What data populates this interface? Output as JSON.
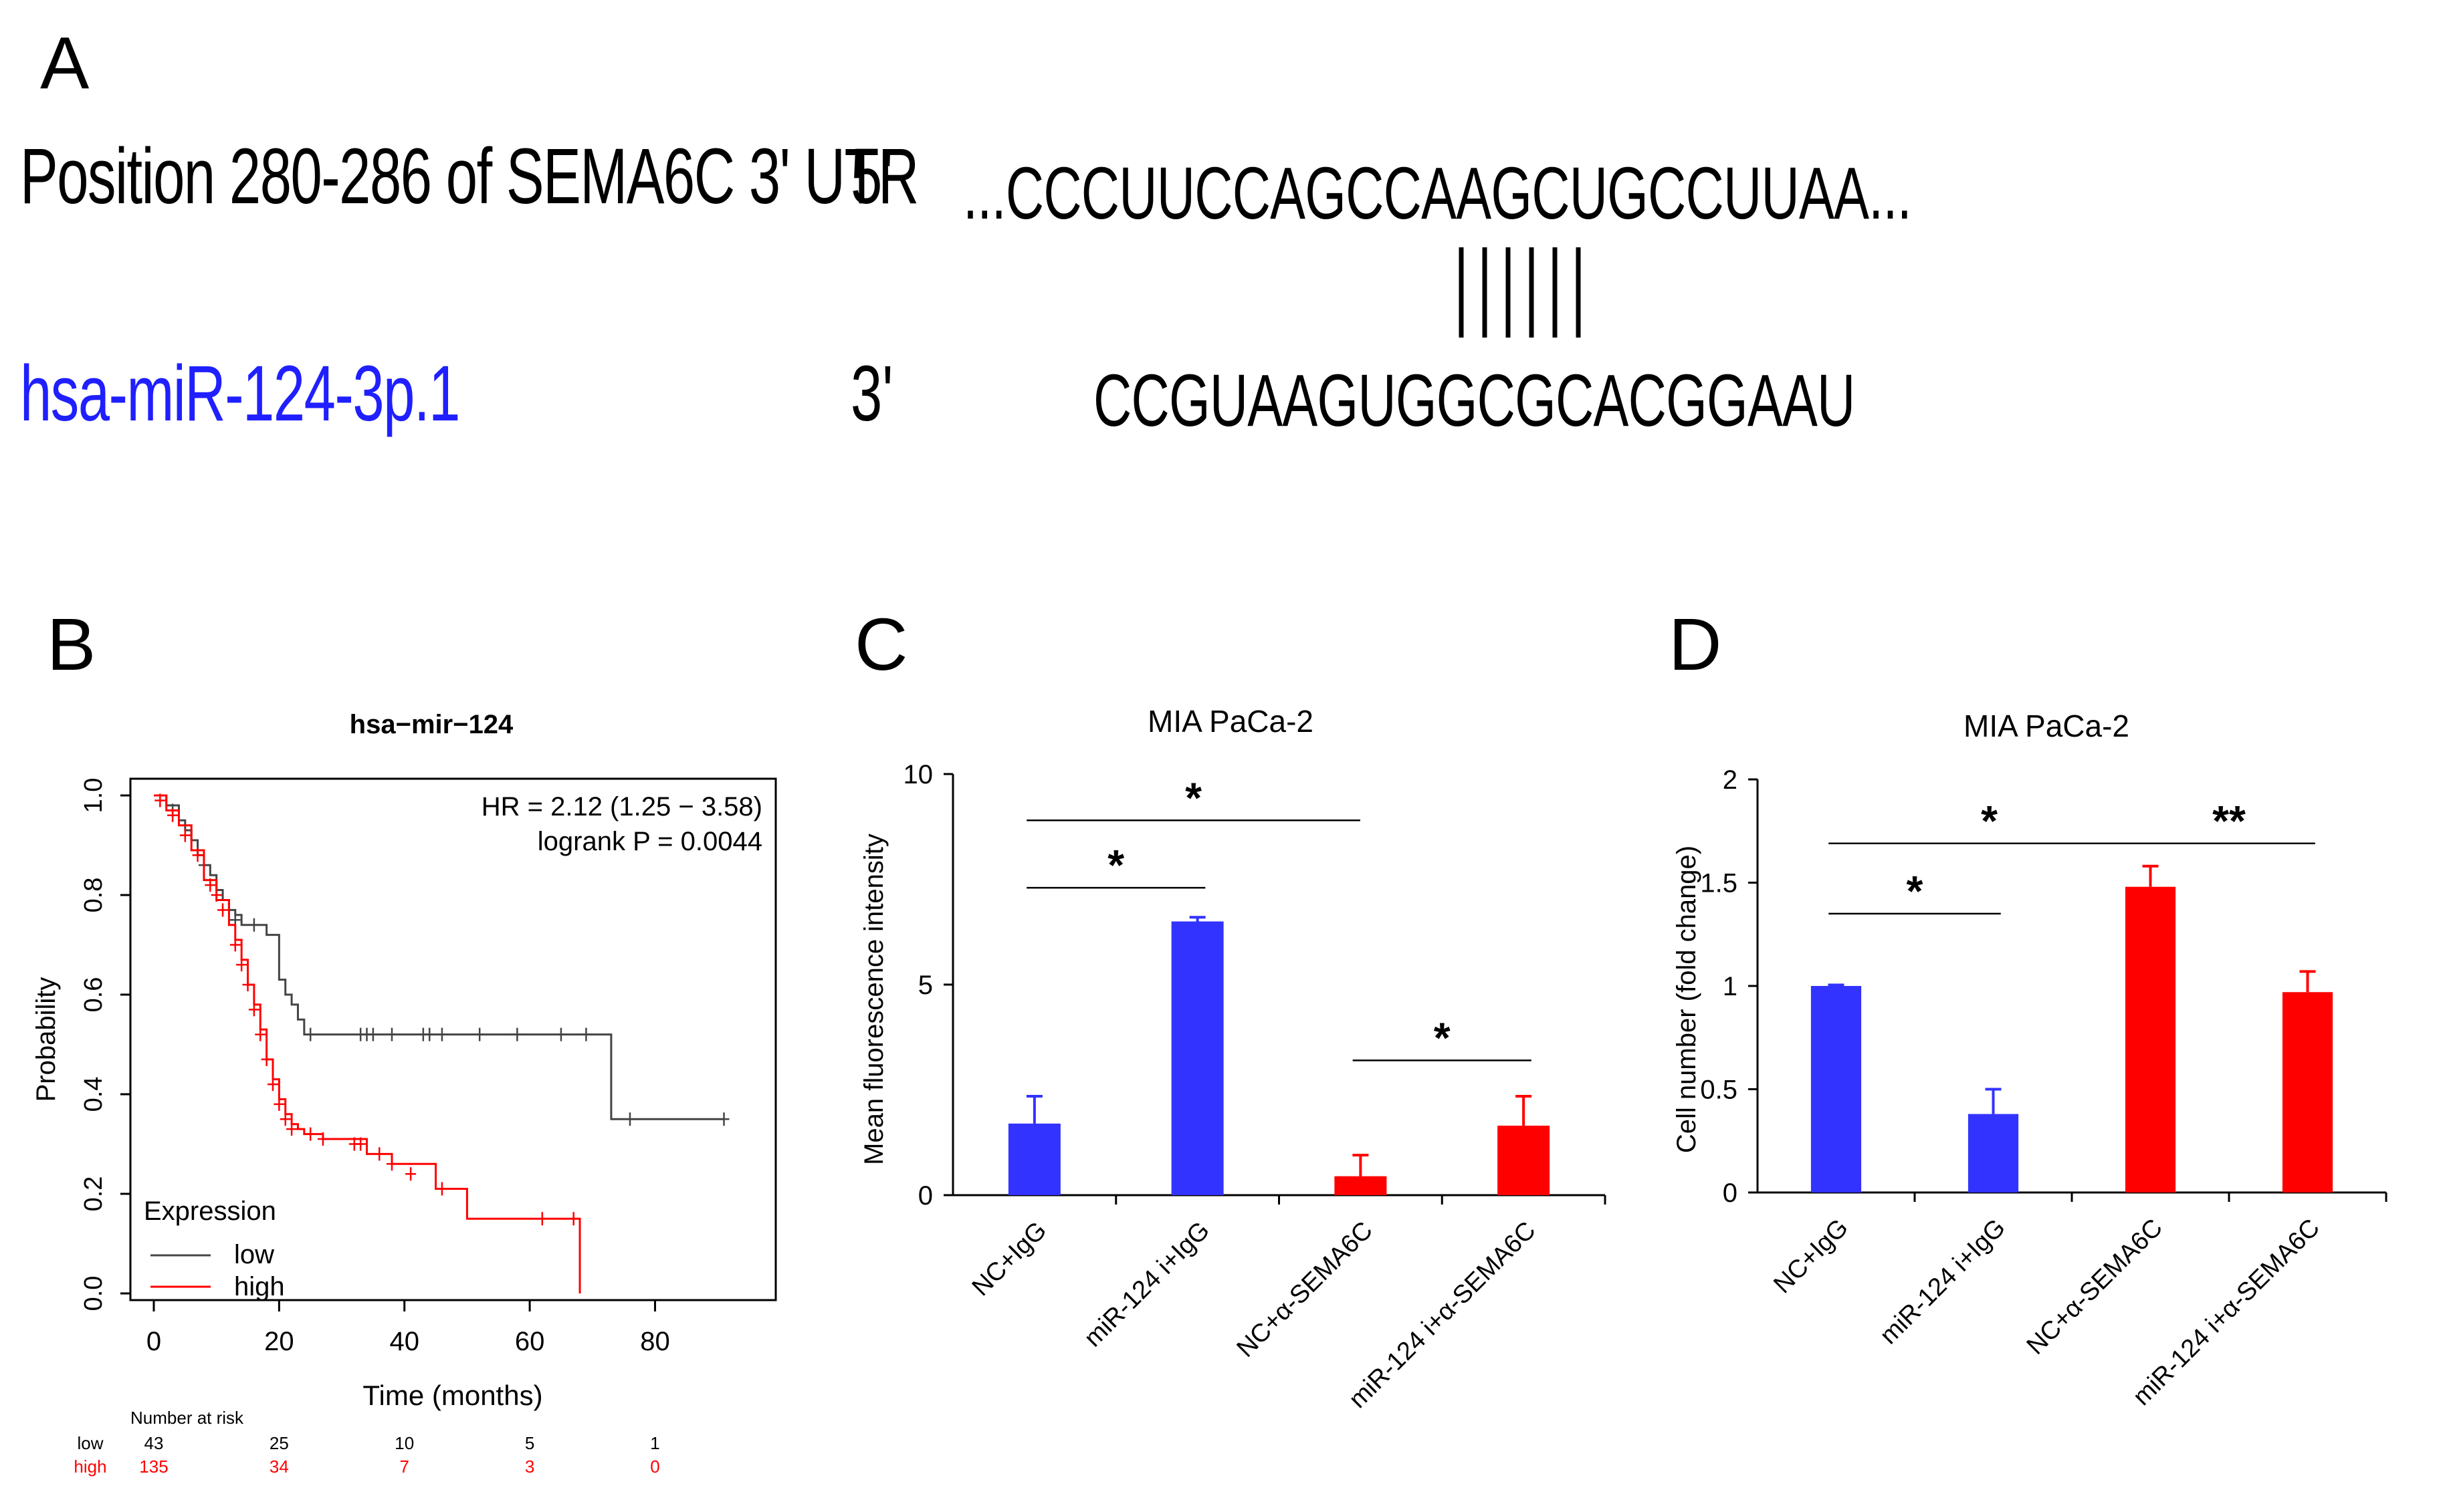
{
  "panels": {
    "a": {
      "letter": "A",
      "position_label": "Position 280-286 of SEMA6C 3' UTR",
      "utr_end": "5'",
      "utr_sequence": "...CCCUUCCAGCCAAGCUGCCUUAA...",
      "mirna_name": "hsa-miR-124-3p.1",
      "mirna_end": "3'",
      "mirna_sequence": "CCGUAAGUGGCGCACGGAAU",
      "mirna_color": "#1f1fff"
    },
    "b": {
      "letter": "B"
    },
    "c": {
      "letter": "C"
    },
    "d": {
      "letter": "D"
    }
  },
  "chart_data": [
    {
      "type": "line",
      "panel": "B",
      "title": "hsa−mir−124",
      "xlabel": "Time (months)",
      "ylabel": "Probability",
      "xlim": [
        0,
        95
      ],
      "ylim": [
        0,
        1.0
      ],
      "xticks": [
        "0",
        "20",
        "40",
        "60",
        "80"
      ],
      "yticks": [
        "0.0",
        "0.2",
        "0.4",
        "0.6",
        "0.8",
        "1.0"
      ],
      "annotation_hr": "HR = 2.12 (1.25 − 3.58)",
      "annotation_p": "logrank P = 0.0044",
      "legend_title": "Expression",
      "legend_position": "bottom-left",
      "series": [
        {
          "name": "low",
          "color": "#444444",
          "x": [
            0,
            2,
            4,
            5,
            6,
            7,
            8,
            9,
            10,
            11,
            12,
            13,
            14,
            16,
            18,
            20,
            21,
            22,
            23,
            24,
            25,
            73,
            91
          ],
          "y": [
            1.0,
            0.98,
            0.95,
            0.93,
            0.91,
            0.88,
            0.86,
            0.84,
            0.81,
            0.79,
            0.77,
            0.76,
            0.74,
            0.74,
            0.72,
            0.63,
            0.6,
            0.58,
            0.55,
            0.52,
            0.52,
            0.35,
            0.35
          ],
          "censor_x": [
            3,
            8,
            13,
            16,
            25,
            33,
            34,
            35,
            38,
            43,
            44,
            46,
            52,
            58,
            65,
            69,
            76,
            91
          ],
          "censor_y": [
            0.97,
            0.86,
            0.75,
            0.74,
            0.52,
            0.52,
            0.52,
            0.52,
            0.52,
            0.52,
            0.52,
            0.52,
            0.52,
            0.52,
            0.52,
            0.52,
            0.35,
            0.35
          ]
        },
        {
          "name": "high",
          "color": "#ff0000",
          "x": [
            0,
            2,
            4,
            6,
            8,
            10,
            12,
            13,
            14,
            15,
            16,
            17,
            18,
            19,
            20,
            21,
            22,
            23,
            24,
            27,
            34,
            38,
            45,
            50,
            60,
            68,
            68
          ],
          "y": [
            1.0,
            0.97,
            0.94,
            0.89,
            0.83,
            0.79,
            0.74,
            0.71,
            0.67,
            0.62,
            0.58,
            0.53,
            0.47,
            0.43,
            0.39,
            0.36,
            0.34,
            0.33,
            0.32,
            0.31,
            0.28,
            0.26,
            0.21,
            0.15,
            0.15,
            0.15,
            0.0
          ],
          "censor_x": [
            1,
            3,
            5,
            7,
            9,
            10,
            11,
            13,
            14,
            15,
            16,
            17,
            18,
            19,
            20,
            21,
            22,
            25,
            27,
            32,
            33,
            36,
            38,
            41,
            46,
            62,
            67
          ],
          "censor_y": [
            0.99,
            0.96,
            0.92,
            0.88,
            0.82,
            0.8,
            0.77,
            0.7,
            0.66,
            0.62,
            0.57,
            0.52,
            0.47,
            0.42,
            0.38,
            0.35,
            0.33,
            0.32,
            0.31,
            0.3,
            0.3,
            0.28,
            0.26,
            0.24,
            0.21,
            0.15,
            0.15
          ]
        }
      ],
      "risk_table": {
        "title": "Number at risk",
        "times": [
          "0",
          "20",
          "40",
          "60",
          "80"
        ],
        "rows": [
          {
            "label": "low",
            "color": "#000000",
            "values": [
              "43",
              "25",
              "10",
              "5",
              "1"
            ]
          },
          {
            "label": "high",
            "color": "#ff0000",
            "values": [
              "135",
              "34",
              "7",
              "3",
              "0"
            ]
          }
        ]
      }
    },
    {
      "type": "bar",
      "panel": "C",
      "title": "MIA PaCa-2",
      "xlabel": "",
      "ylabel": "Mean fluorescence intensity",
      "ylim": [
        0,
        10
      ],
      "yticks": [
        "0",
        "5",
        "10"
      ],
      "categories": [
        "NC+IgG",
        "miR-124 i+IgG",
        "NC+α-SEMA6C",
        "miR-124 i+α-SEMA6C"
      ],
      "values": [
        1.7,
        6.5,
        0.45,
        1.65
      ],
      "errors": [
        0.65,
        0.1,
        0.5,
        0.7
      ],
      "colors": [
        "#3333ff",
        "#3333ff",
        "#ff0000",
        "#ff0000"
      ],
      "significance": [
        {
          "from": 0,
          "to": 2,
          "label": "*",
          "y": 8.9
        },
        {
          "from": 0,
          "to": 1,
          "label": "*",
          "y": 7.3
        },
        {
          "from": 2,
          "to": 3,
          "label": "*",
          "y": 3.2
        }
      ]
    },
    {
      "type": "bar",
      "panel": "D",
      "title": "MIA PaCa-2",
      "xlabel": "",
      "ylabel": "Cell number (fold change)",
      "ylim": [
        0,
        2
      ],
      "yticks": [
        "0",
        "0.5",
        "1",
        "1.5",
        "2"
      ],
      "categories": [
        "NC+IgG",
        "miR-124 i+IgG",
        "NC+α-SEMA6C",
        "miR-124 i+α-SEMA6C"
      ],
      "values": [
        1.0,
        0.38,
        1.48,
        0.97
      ],
      "errors": [
        0.005,
        0.12,
        0.1,
        0.1
      ],
      "colors": [
        "#3333ff",
        "#3333ff",
        "#ff0000",
        "#ff0000"
      ],
      "significance": [
        {
          "from": 0,
          "to": 2,
          "label": "*",
          "y": 1.69
        },
        {
          "from": 2,
          "to": 3,
          "label": "**",
          "y": 1.69
        },
        {
          "from": 0,
          "to": 1,
          "label": "*",
          "y": 1.35
        }
      ]
    }
  ]
}
